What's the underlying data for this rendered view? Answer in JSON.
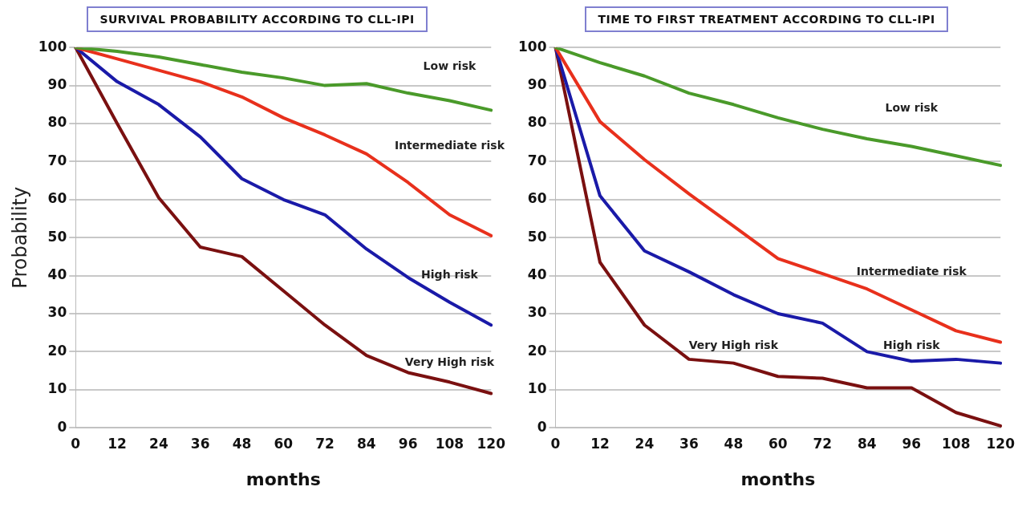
{
  "chart_data": [
    {
      "type": "line",
      "title": "SURVIVAL PROBABILITY ACCORDING TO CLL-IPI",
      "xlabel": "months",
      "ylabel": "Probability",
      "categories": [
        "0",
        "12",
        "24",
        "36",
        "48",
        "60",
        "72",
        "84",
        "96",
        "108",
        "120"
      ],
      "series": [
        {
          "name": "Low risk",
          "color": "#4a9a2a",
          "values": [
            100,
            99,
            97.5,
            95.5,
            93.5,
            92,
            90,
            90.5,
            88,
            86,
            83.5
          ]
        },
        {
          "name": "Intermediate risk",
          "color": "#e8301c",
          "values": [
            100,
            97,
            94,
            91,
            87,
            81.5,
            77,
            72,
            64.5,
            56,
            50.5
          ]
        },
        {
          "name": "High risk",
          "color": "#1a1aa8",
          "values": [
            100,
            91,
            85,
            76.5,
            65.5,
            60,
            56,
            47,
            39.5,
            33,
            27
          ]
        },
        {
          "name": "Very High risk",
          "color": "#7a1010",
          "values": [
            100,
            80,
            60.5,
            47.5,
            45,
            36,
            27,
            19,
            14.5,
            12,
            9
          ]
        }
      ],
      "ylim": [
        0,
        100
      ],
      "yticks": [
        0,
        10,
        20,
        30,
        40,
        50,
        60,
        70,
        80,
        90,
        100
      ],
      "grid": "y",
      "legend": false,
      "marker": "none",
      "line_style": "solid"
    },
    {
      "type": "line",
      "title": "TIME TO FIRST TREATMENT  ACCORDING TO CLL-IPI",
      "xlabel": "months",
      "categories": [
        "0",
        "12",
        "24",
        "36",
        "48",
        "60",
        "72",
        "84",
        "96",
        "108",
        "120"
      ],
      "series": [
        {
          "name": "Low risk",
          "color": "#4a9a2a",
          "values": [
            100,
            96,
            92.5,
            88,
            85,
            81.5,
            78.5,
            76,
            74,
            71.5,
            69
          ]
        },
        {
          "name": "Intermediate risk",
          "color": "#e8301c",
          "values": [
            100,
            80.5,
            70.5,
            61.5,
            53,
            44.5,
            40.5,
            36.5,
            31,
            25.5,
            22.5
          ]
        },
        {
          "name": "High risk",
          "color": "#1a1aa8",
          "values": [
            100,
            61,
            46.5,
            41,
            35,
            30,
            27.5,
            20,
            17.5,
            18,
            17
          ]
        },
        {
          "name": "Very High risk",
          "color": "#7a1010",
          "values": [
            100,
            43.5,
            27,
            18,
            17,
            13.5,
            13,
            10.5,
            10.5,
            4,
            0.5
          ]
        }
      ],
      "ylim": [
        0,
        100
      ],
      "yticks": [
        0,
        10,
        20,
        30,
        40,
        50,
        60,
        70,
        80,
        90,
        100
      ],
      "grid": "y",
      "legend": false,
      "marker": "none",
      "line_style": "solid"
    }
  ]
}
